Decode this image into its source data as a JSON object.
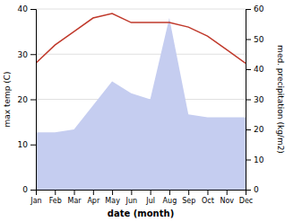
{
  "chart_data": {
    "type": "line",
    "categories": [
      "Jan",
      "Feb",
      "Mar",
      "Apr",
      "May",
      "Jun",
      "Jul",
      "Aug",
      "Sep",
      "Oct",
      "Nov",
      "Dec"
    ],
    "series": [
      {
        "type": "area",
        "axis": "y2",
        "color": "#c5cdf0",
        "values": [
          19,
          19,
          20,
          28,
          36,
          32,
          30,
          57,
          25,
          24,
          24,
          24
        ]
      },
      {
        "type": "line",
        "color": "#c0392b",
        "values": [
          28,
          32,
          35,
          38,
          39,
          37,
          37,
          37,
          36,
          34,
          31,
          28
        ]
      }
    ],
    "xlabel": "date (month)",
    "ylabel": "max temp (C)",
    "y2label": "med. precipitation (kg/m2)",
    "ylim": [
      0,
      40
    ],
    "yticks": [
      0,
      10,
      20,
      30,
      40
    ],
    "y2lim": [
      0,
      60
    ],
    "y2ticks": [
      0,
      10,
      20,
      30,
      40,
      50,
      60
    ],
    "grid": true
  }
}
